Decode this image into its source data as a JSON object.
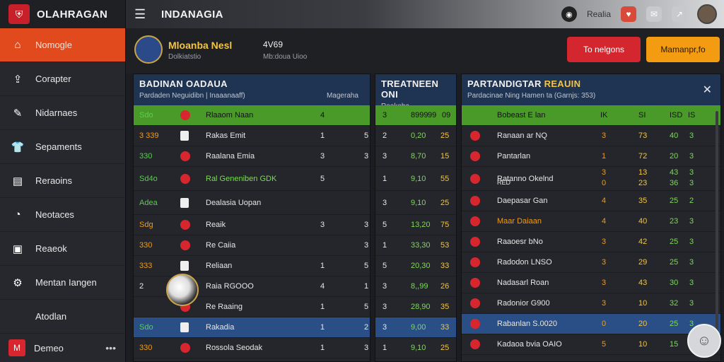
{
  "brand": {
    "name": "OLAHRAGAN",
    "logo_icon": "shield-logo-icon"
  },
  "topbar": {
    "title": "INDANAGIA",
    "user_name": "Realia"
  },
  "sidebar": {
    "items": [
      {
        "label": "Nomogle",
        "icon": "home-icon",
        "active": true
      },
      {
        "label": "Corapter",
        "icon": "upload-icon"
      },
      {
        "label": "Nidarnaes",
        "icon": "megaphone-icon"
      },
      {
        "label": "Sepaments",
        "icon": "shirt-icon"
      },
      {
        "label": "Reraoins",
        "icon": "document-icon"
      },
      {
        "label": "Neotaces",
        "icon": "chat-icon"
      },
      {
        "label": "Reaeok",
        "icon": "gift-icon"
      },
      {
        "label": "Mentan Iangen",
        "icon": "settings-icon"
      },
      {
        "label": "Atodlan",
        "icon": ""
      }
    ],
    "bottom": {
      "label": "Demeo",
      "more": "•••"
    }
  },
  "header": {
    "title": "Mloanba Nesl",
    "subtitle": "Dolkiatstio",
    "stat": "4V69",
    "stat_sub": "Mb:doua Uioo",
    "btn_red": "To nelgons",
    "btn_orange": "Mamanpr,fo"
  },
  "panel_left": {
    "title": "BADINAN OADAUA",
    "subtitle_left": "Pardaden Neguidibn | Inaaanaaff)",
    "subtitle_right": "Mageraha",
    "rows": [
      {
        "pos": "Sdo",
        "name": "Rlaaom Naan",
        "a": "4",
        "b": "",
        "style": "green"
      },
      {
        "pos": "3 339",
        "name": "Rakas Emit",
        "a": "1",
        "b": "5"
      },
      {
        "pos": "330",
        "name": "Raalana Emia",
        "a": "3",
        "b": "3"
      },
      {
        "pos": "Sd4o",
        "name": "Ral Geneniben GDK",
        "a": "5",
        "b": ""
      },
      {
        "pos": "Adea",
        "name": "Dealasia Uopan",
        "a": "",
        "b": ""
      },
      {
        "pos": "Sdg",
        "name": "Reaik",
        "a": "3",
        "b": "3"
      },
      {
        "pos": "330",
        "name": "Re Caiia",
        "a": "",
        "b": "3"
      },
      {
        "pos": "333",
        "name": "Reliaan",
        "a": "1",
        "b": "5"
      },
      {
        "pos": "2",
        "name": "Raia RGOOO",
        "a": "4",
        "b": "1"
      },
      {
        "pos": "",
        "name": "Re Raaing",
        "a": "1",
        "b": "5"
      },
      {
        "pos": "Sdo",
        "name": "Rakadia",
        "a": "1",
        "b": "2",
        "style": "sel"
      },
      {
        "pos": "330",
        "name": "Rossola Seodak",
        "a": "1",
        "b": "3"
      }
    ]
  },
  "panel_mid": {
    "title": "TREATNEEN ONI",
    "subtitle": "Rookoba",
    "header_row": [
      "3",
      "8999",
      "99",
      "09"
    ],
    "rows": [
      [
        "2",
        "0,20",
        "25"
      ],
      [
        "3",
        "8,70",
        "15"
      ],
      [
        "1",
        "9,10",
        "55"
      ],
      [
        "3",
        "9,10",
        "25"
      ],
      [
        "5",
        "13,20",
        "75"
      ],
      [
        "1",
        "33,30",
        "53"
      ],
      [
        "5",
        "20,30",
        "33"
      ],
      [
        "3",
        "8,,99",
        "26"
      ],
      [
        "3",
        "28,90",
        "35"
      ],
      [
        "3",
        "9,00",
        "33"
      ],
      [
        "1",
        "9,10",
        "25"
      ]
    ]
  },
  "panel_right": {
    "title": "PARTANDIGTAR",
    "title_hl": "REAUIN",
    "subtitle": "Pardacinae Ning Hamen ta (Garnjs: 353)",
    "header_row": [
      "Bobeast E lan",
      "IK",
      "SI",
      "ISD",
      "IS"
    ],
    "rows": [
      {
        "name": "Ranaan ar NQ",
        "a": "3",
        "b": "73",
        "c": "40",
        "d": "3"
      },
      {
        "name": "Pantarlan",
        "a": "1",
        "b": "72",
        "c": "20",
        "d": "3"
      },
      {
        "name": "Ratanno Okelnd",
        "name2": "RED",
        "a": "3",
        "a2": "0",
        "b": "13",
        "b2": "23",
        "c": "43",
        "c2": "36",
        "d": "3",
        "d2": "3"
      },
      {
        "name": "Daepasar Gan",
        "a": "4",
        "b": "35",
        "c": "25",
        "d": "2"
      },
      {
        "name": "Maar Daiaan",
        "a": "4",
        "b": "40",
        "c": "23",
        "d": "3",
        "highlight": true
      },
      {
        "name": "Raaoesr bNo",
        "a": "3",
        "b": "42",
        "c": "25",
        "d": "3"
      },
      {
        "name": "Radodon LNSO",
        "a": "3",
        "b": "29",
        "c": "25",
        "d": "3"
      },
      {
        "name": "Nadasarl Roan",
        "a": "3",
        "b": "43",
        "c": "30",
        "d": "3"
      },
      {
        "name": "Radonior G900",
        "a": "3",
        "b": "10",
        "c": "32",
        "d": "3"
      },
      {
        "name": "Rabanlan S.0020",
        "a": "0",
        "b": "20",
        "c": "25",
        "d": "3",
        "sel": true
      },
      {
        "name": "Kadaoa bvia OAIO",
        "a": "5",
        "b": "10",
        "c": "15",
        "d": "5"
      }
    ]
  },
  "colors": {
    "accent": "#e04a1c",
    "panel_head": "#1f3352",
    "green_row": "#4a9a2a",
    "gold": "#f4c542"
  }
}
